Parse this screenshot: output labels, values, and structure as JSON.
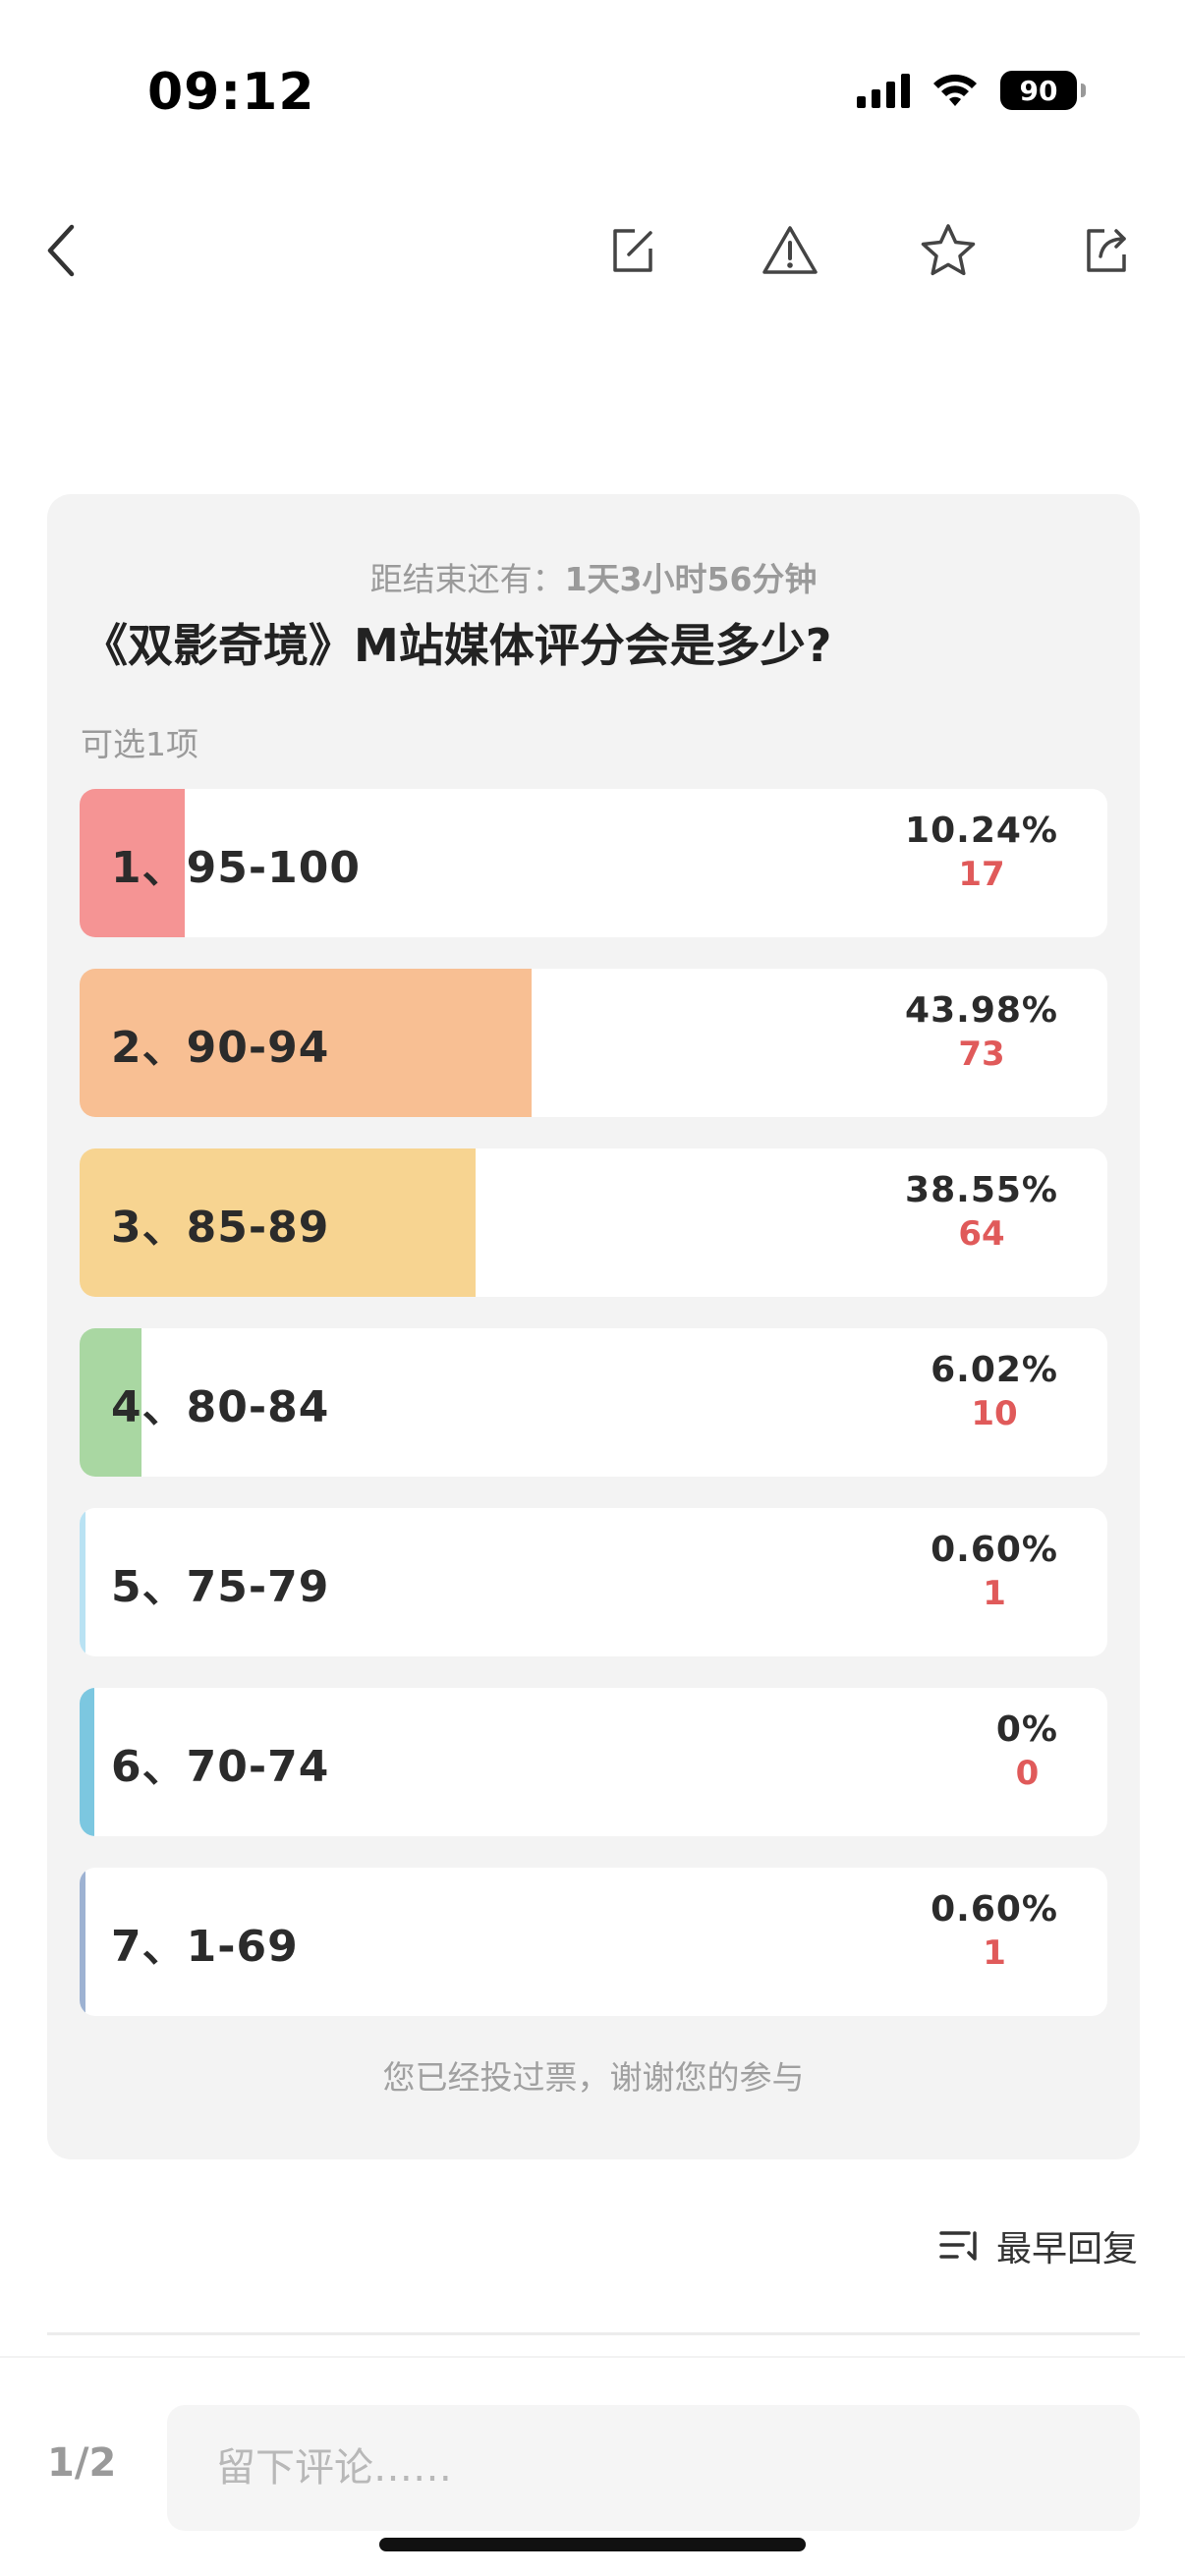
{
  "status_bar": {
    "time": "09:12",
    "battery": "90"
  },
  "nav": {
    "back_icon": "chevron-left-icon",
    "edit_icon": "edit-icon",
    "report_icon": "warning-icon",
    "favorite_icon": "star-icon",
    "share_icon": "share-icon"
  },
  "poll": {
    "countdown_prefix": "距结束还有：",
    "countdown_value": "1天3小时56分钟",
    "title": "《双影奇境》M站媒体评分会是多少?",
    "hint": "可选1项",
    "options": [
      {
        "label": "1、95-100",
        "percent": "10.24%",
        "count": "17",
        "fraction": 0.1024,
        "color": "#f59494"
      },
      {
        "label": "2、90-94",
        "percent": "43.98%",
        "count": "73",
        "fraction": 0.4398,
        "color": "#f8bf93"
      },
      {
        "label": "3、85-89",
        "percent": "38.55%",
        "count": "64",
        "fraction": 0.3855,
        "color": "#f7d491"
      },
      {
        "label": "4、80-84",
        "percent": "6.02%",
        "count": "10",
        "fraction": 0.0602,
        "color": "#a9d7a2"
      },
      {
        "label": "5、75-79",
        "percent": "0.60%",
        "count": "1",
        "fraction": 0.006,
        "color": "#b9e2f3"
      },
      {
        "label": "6、70-74",
        "percent": "0%",
        "count": "0",
        "fraction": 0.0,
        "color": "#7cc7e0"
      },
      {
        "label": "7、1-69",
        "percent": "0.60%",
        "count": "1",
        "fraction": 0.006,
        "color": "#9db2d2"
      }
    ],
    "voted_note": "您已经投过票，谢谢您的参与"
  },
  "sort": {
    "label": "最早回复",
    "icon": "sort-icon"
  },
  "bottom_bar": {
    "page_indicator": "1/2",
    "comment_placeholder": "留下评论……"
  }
}
